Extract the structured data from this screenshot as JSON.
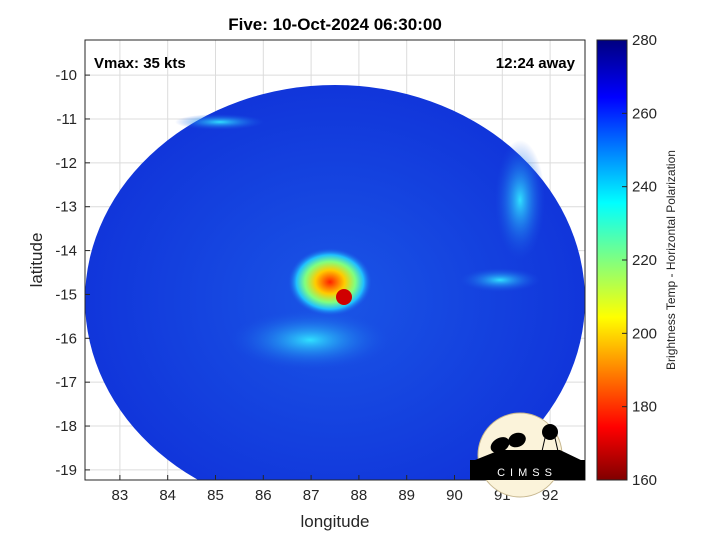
{
  "chart_data": {
    "type": "heatmap",
    "title": "Five: 10-Oct-2024 06:30:00",
    "xlabel": "longitude",
    "ylabel": "latitude",
    "xlim": [
      82.27,
      92.73
    ],
    "ylim": [
      -19.23,
      -9.2
    ],
    "xticks": [
      "83",
      "84",
      "85",
      "86",
      "87",
      "88",
      "89",
      "90",
      "91",
      "92"
    ],
    "xtick_values": [
      83,
      84,
      85,
      86,
      87,
      88,
      89,
      90,
      91,
      92
    ],
    "yticks": [
      "-10",
      "-11",
      "-12",
      "-13",
      "-14",
      "-15",
      "-16",
      "-17",
      "-18",
      "-19"
    ],
    "ytick_values": [
      -10,
      -11,
      -12,
      -13,
      -14,
      -15,
      -16,
      -17,
      -18,
      -19
    ],
    "grid": true,
    "annotations": {
      "vmax": "Vmax: 35 kts",
      "distance": "12:24 away"
    },
    "colorbar": {
      "label": "Brightness Temp - Horizontal Polarization",
      "clim": [
        160,
        280
      ],
      "ticks": [
        "160",
        "180",
        "200",
        "220",
        "240",
        "260",
        "280"
      ],
      "tick_values": [
        160,
        180,
        200,
        220,
        240,
        260,
        280
      ],
      "colormap": "jet"
    },
    "storm_center": {
      "lon": 87.5,
      "lat": -14.8,
      "min_temp_approx": 175
    },
    "background_temp_approx": 265
  },
  "logo": {
    "text": "CIMSS"
  }
}
